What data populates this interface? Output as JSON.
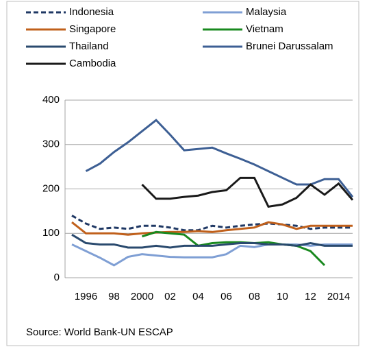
{
  "chart_data": {
    "type": "line",
    "categories": [
      null,
      "1996",
      null,
      "98",
      null,
      "2000",
      null,
      "02",
      null,
      "04",
      null,
      "06",
      null,
      "08",
      null,
      "10",
      null,
      "12",
      null,
      "2014",
      null
    ],
    "series": [
      {
        "name": "Indonesia",
        "color": "#1f3864",
        "dashed": true,
        "values": [
          140,
          122,
          110,
          113,
          110,
          117,
          117,
          113,
          107,
          107,
          117,
          113,
          117,
          120,
          122,
          120,
          117,
          110,
          113,
          113,
          113
        ]
      },
      {
        "name": "Malaysia",
        "color": "#7f9fd4",
        "values": [
          75,
          60,
          45,
          28,
          47,
          53,
          50,
          47,
          46,
          46,
          46,
          53,
          72,
          69,
          75,
          75,
          75,
          72,
          75,
          75,
          75
        ]
      },
      {
        "name": "Singapore",
        "color": "#c0601b",
        "values": [
          125,
          100,
          100,
          100,
          97,
          100,
          102,
          103,
          103,
          105,
          103,
          107,
          110,
          113,
          125,
          120,
          110,
          117,
          117,
          117,
          117
        ]
      },
      {
        "name": "Vietnam",
        "color": "#19891f",
        "values": [
          null,
          null,
          null,
          null,
          null,
          93,
          103,
          100,
          97,
          72,
          78,
          80,
          80,
          78,
          80,
          75,
          72,
          60,
          28,
          null,
          null
        ]
      },
      {
        "name": "Thailand",
        "color": "#2a4a6e",
        "values": [
          97,
          78,
          75,
          75,
          68,
          68,
          72,
          68,
          72,
          72,
          72,
          75,
          78,
          78,
          75,
          75,
          72,
          78,
          72,
          72,
          72
        ]
      },
      {
        "name": "Brunei Darussalam",
        "color": "#3d5f94",
        "values": [
          null,
          240,
          257,
          283,
          305,
          330,
          355,
          322,
          287,
          290,
          293,
          280,
          268,
          255,
          240,
          225,
          210,
          210,
          222,
          222,
          182
        ]
      },
      {
        "name": "Cambodia",
        "color": "#1a1a1a",
        "values": [
          null,
          null,
          null,
          null,
          null,
          210,
          178,
          178,
          182,
          185,
          193,
          197,
          225,
          225,
          160,
          165,
          180,
          210,
          187,
          212,
          175
        ]
      }
    ],
    "ylim": [
      0,
      400
    ],
    "yticks": [
      0,
      100,
      200,
      300,
      400
    ],
    "grid": true,
    "source": "Source: World Bank-UN ESCAP"
  }
}
